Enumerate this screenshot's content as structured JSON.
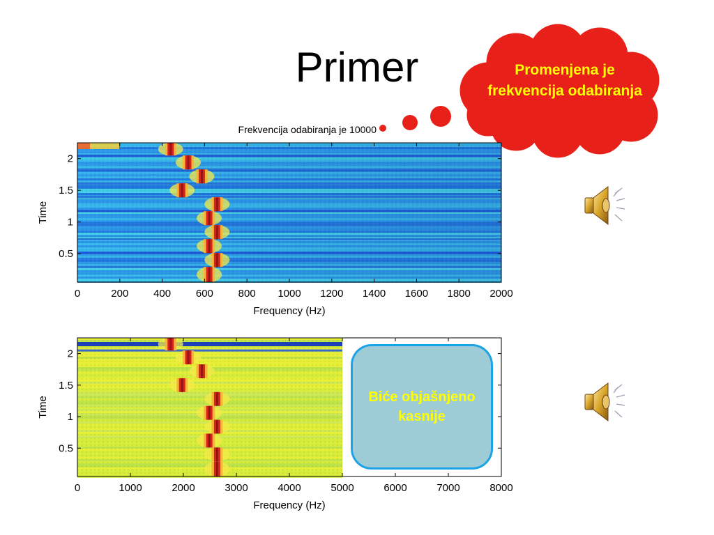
{
  "slide": {
    "title": "Primer",
    "cloud_text": "Promenjena je frekvencija odabiranja",
    "note_text": "Biće objašnjeno kasnije",
    "speaker_icon": "speaker-icon",
    "colors": {
      "cloud": "#e8201a",
      "note_fill": "#9dccd6",
      "note_border": "#1aa3e6",
      "highlight_text": "#ffff00"
    }
  },
  "chart_data": [
    {
      "type": "heatmap",
      "title": "Frekvencija odabiranja je 10000",
      "xlabel": "Frequency (Hz)",
      "ylabel": "Time",
      "xlim": [
        0,
        2000
      ],
      "ylim": [
        0.05,
        2.25
      ],
      "xticks": [
        "0",
        "200",
        "400",
        "600",
        "800",
        "1000",
        "1200",
        "1400",
        "1600",
        "1800",
        "2000"
      ],
      "yticks": [
        "0.5",
        "1",
        "1.5",
        "2"
      ],
      "ytick_values": [
        0.5,
        1,
        1.5,
        2
      ],
      "tones": [
        {
          "t_start": 2.05,
          "t_end": 2.25,
          "freq": 440
        },
        {
          "t_start": 1.83,
          "t_end": 2.05,
          "freq": 523
        },
        {
          "t_start": 1.61,
          "t_end": 1.83,
          "freq": 587
        },
        {
          "t_start": 1.39,
          "t_end": 1.61,
          "freq": 494
        },
        {
          "t_start": 1.17,
          "t_end": 1.39,
          "freq": 659
        },
        {
          "t_start": 0.95,
          "t_end": 1.17,
          "freq": 622
        },
        {
          "t_start": 0.73,
          "t_end": 0.95,
          "freq": 659
        },
        {
          "t_start": 0.51,
          "t_end": 0.73,
          "freq": 622
        },
        {
          "t_start": 0.29,
          "t_end": 0.51,
          "freq": 659
        },
        {
          "t_start": 0.05,
          "t_end": 0.29,
          "freq": 622
        }
      ]
    },
    {
      "type": "heatmap",
      "xlabel": "Frequency (Hz)",
      "ylabel": "Time",
      "xlim": [
        0,
        8000
      ],
      "ylim": [
        0.05,
        2.25
      ],
      "xticks": [
        "0",
        "1000",
        "2000",
        "3000",
        "4000",
        "5000",
        "6000",
        "7000",
        "8000"
      ],
      "yticks": [
        "0.5",
        "1",
        "1.5",
        "2"
      ],
      "ytick_values": [
        0.5,
        1,
        1.5,
        2
      ],
      "data_xmax": 5000,
      "tones": [
        {
          "t_start": 2.05,
          "t_end": 2.25,
          "freq": 1760
        },
        {
          "t_start": 1.83,
          "t_end": 2.05,
          "freq": 2093
        },
        {
          "t_start": 1.61,
          "t_end": 1.83,
          "freq": 2349
        },
        {
          "t_start": 1.39,
          "t_end": 1.61,
          "freq": 1976
        },
        {
          "t_start": 1.17,
          "t_end": 1.39,
          "freq": 2637
        },
        {
          "t_start": 0.95,
          "t_end": 1.17,
          "freq": 2489
        },
        {
          "t_start": 0.73,
          "t_end": 0.95,
          "freq": 2637
        },
        {
          "t_start": 0.51,
          "t_end": 0.73,
          "freq": 2489
        },
        {
          "t_start": 0.29,
          "t_end": 0.51,
          "freq": 2637
        },
        {
          "t_start": 0.05,
          "t_end": 0.29,
          "freq": 2637
        }
      ]
    }
  ]
}
